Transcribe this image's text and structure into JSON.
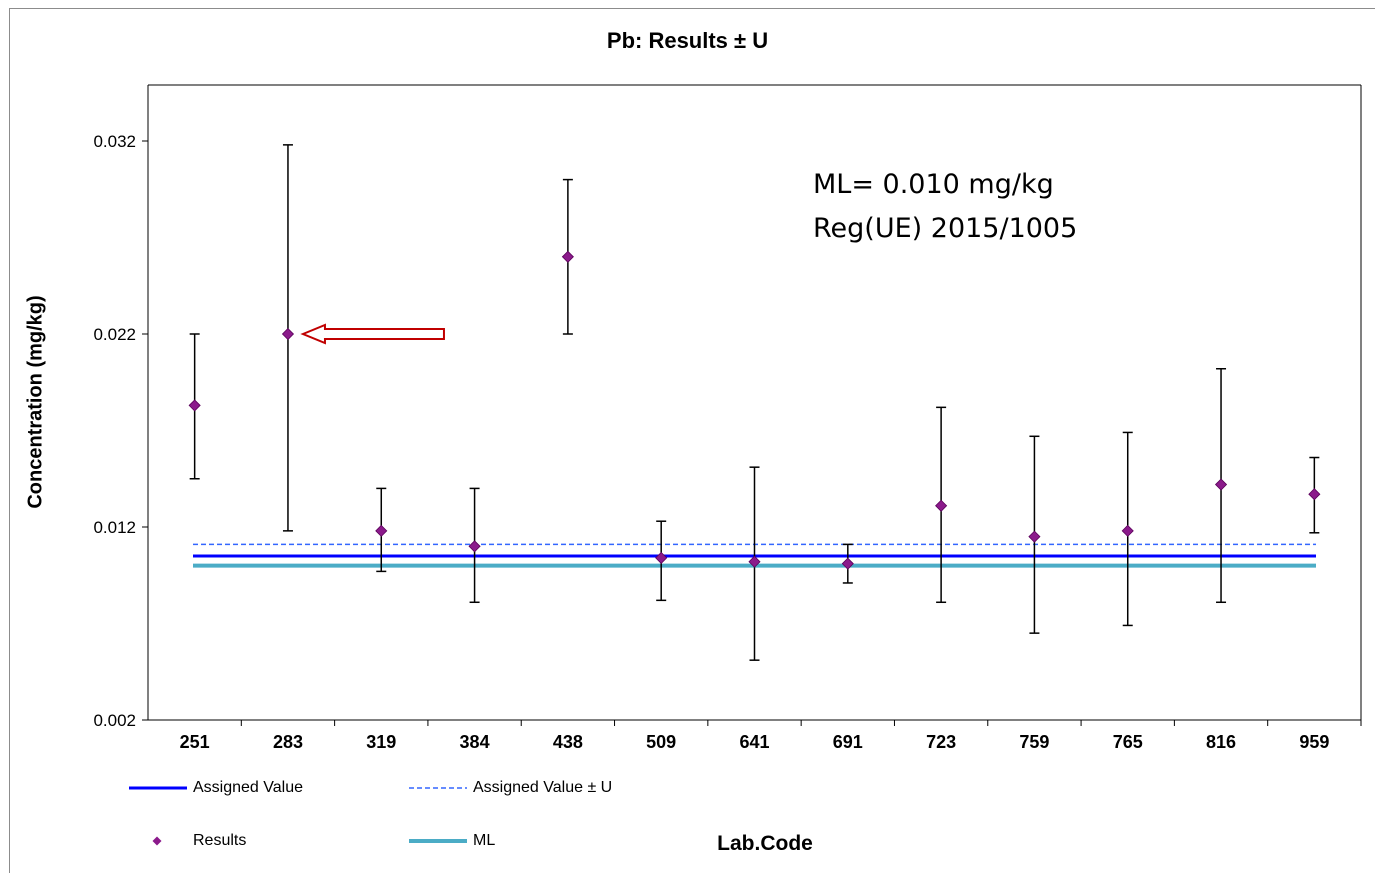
{
  "chart_data": {
    "type": "scatter",
    "title": "Pb: Results ± U",
    "xlabel": "Lab.Code",
    "ylabel": "Concentration (mg/kg)",
    "ylim": [
      0.002,
      0.035
    ],
    "yticks": [
      "0.002",
      "0.012",
      "0.022",
      "0.032"
    ],
    "ytick_values": [
      0.002,
      0.012,
      0.022,
      0.032
    ],
    "grid": false,
    "categories": [
      "251",
      "283",
      "319",
      "384",
      "438",
      "509",
      "641",
      "691",
      "723",
      "759",
      "765",
      "816",
      "959"
    ],
    "series": [
      {
        "name": "Results",
        "values": [
          0.0183,
          0.022,
          0.0118,
          0.011,
          0.026,
          0.0104,
          0.0102,
          0.0101,
          0.0131,
          0.0115,
          0.0118,
          0.0142,
          0.0137
        ],
        "upper": [
          0.022,
          0.0318,
          0.014,
          0.014,
          0.03,
          0.0123,
          0.0151,
          0.0111,
          0.0182,
          0.0167,
          0.0169,
          0.0202,
          0.0156
        ],
        "lower": [
          0.0145,
          0.0118,
          0.0097,
          0.0081,
          0.022,
          0.0082,
          0.0051,
          0.0091,
          0.0081,
          0.0065,
          0.0069,
          0.0081,
          0.0117
        ],
        "color": "#8b1a8b"
      }
    ],
    "reference_lines": [
      {
        "name": "Assigned Value",
        "value": 0.0105,
        "color": "#0000ff",
        "style": "solid"
      },
      {
        "name": "Assigned Value ± U",
        "value": 0.0111,
        "color": "#3366ff",
        "style": "dashed"
      },
      {
        "name": "ML",
        "value": 0.01,
        "color": "#4bacc6",
        "style": "solid"
      }
    ],
    "legend": {
      "placement": "bottom-left",
      "entries": [
        "Assigned Value",
        "Assigned Value ± U",
        "Results",
        "ML"
      ]
    },
    "annotations": [
      "ML= 0.010 mg/kg",
      "Reg(UE) 2015/1005"
    ],
    "arrow_target": "283",
    "arrow_color": "#c00000"
  }
}
